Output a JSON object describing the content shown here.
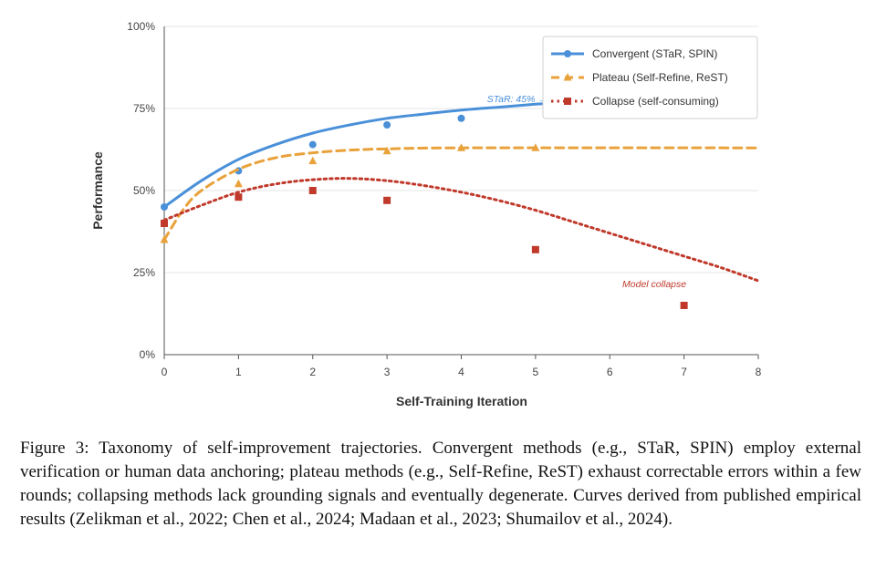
{
  "chart_data": {
    "type": "line",
    "xlabel": "Self-Training Iteration",
    "ylabel": "Performance",
    "xlim": [
      0,
      8
    ],
    "ylim": [
      0,
      100
    ],
    "x_ticks": [
      "0",
      "1",
      "2",
      "3",
      "4",
      "5",
      "6",
      "7",
      "8"
    ],
    "y_ticks": [
      "0%",
      "25%",
      "50%",
      "75%",
      "100%"
    ],
    "grid": "horizontal",
    "legend_position": "top-right",
    "series": [
      {
        "name": "Convergent (STaR, SPIN)",
        "color": "#4a90d9",
        "line_style": "solid",
        "marker": "circle",
        "points": [
          [
            0,
            45
          ],
          [
            1,
            56
          ],
          [
            2,
            64
          ],
          [
            3,
            70
          ],
          [
            4,
            72
          ]
        ],
        "curve": [
          [
            0,
            45
          ],
          [
            0.5,
            53
          ],
          [
            1,
            59.5
          ],
          [
            1.5,
            64
          ],
          [
            2,
            67.5
          ],
          [
            2.5,
            70
          ],
          [
            3,
            72
          ],
          [
            3.5,
            73.3
          ],
          [
            4,
            74.5
          ],
          [
            4.5,
            75.4
          ],
          [
            5,
            76.3
          ],
          [
            5.5,
            77
          ]
        ]
      },
      {
        "name": "Plateau (Self-Refine, ReST)",
        "color": "#e9a23b",
        "line_style": "dashed",
        "marker": "triangle",
        "points": [
          [
            0,
            35
          ],
          [
            1,
            52
          ],
          [
            2,
            59
          ],
          [
            3,
            62
          ],
          [
            4,
            63
          ],
          [
            5,
            63
          ]
        ],
        "curve": [
          [
            0,
            35
          ],
          [
            0.25,
            44
          ],
          [
            0.5,
            50
          ],
          [
            1,
            56.5
          ],
          [
            1.5,
            60
          ],
          [
            2,
            61.5
          ],
          [
            2.5,
            62.3
          ],
          [
            3,
            62.7
          ],
          [
            4,
            63
          ],
          [
            8,
            63
          ]
        ]
      },
      {
        "name": "Collapse (self-consuming)",
        "color": "#c0392b",
        "line_style": "dotted",
        "marker": "square",
        "points": [
          [
            0,
            40
          ],
          [
            1,
            48
          ],
          [
            2,
            50
          ],
          [
            3,
            47
          ],
          [
            5,
            32
          ],
          [
            7,
            15
          ]
        ],
        "curve": [
          [
            0,
            41
          ],
          [
            0.5,
            45.5
          ],
          [
            1,
            49.5
          ],
          [
            1.5,
            52
          ],
          [
            2,
            53.3
          ],
          [
            2.5,
            53.7
          ],
          [
            3,
            53
          ],
          [
            3.5,
            51.5
          ],
          [
            4,
            49.5
          ],
          [
            4.5,
            47
          ],
          [
            5,
            44
          ],
          [
            5.5,
            40.5
          ],
          [
            6,
            37
          ],
          [
            6.5,
            33.5
          ],
          [
            7,
            30
          ],
          [
            7.5,
            26.5
          ],
          [
            8,
            22.5
          ]
        ]
      }
    ],
    "annotations": [
      {
        "text": "STaR: 45% → 72%",
        "x": 4.9,
        "y": 77,
        "color": "#4a90d9"
      },
      {
        "text": "Model collapse",
        "x": 6.6,
        "y": 20.5,
        "color": "#c0392b"
      }
    ]
  },
  "caption": "Figure 3: Taxonomy of self-improvement trajectories. Convergent methods (e.g., STaR, SPIN) employ external verification or human data anchoring; plateau methods (e.g., Self-Refine, ReST) exhaust correctable errors within a few rounds; collapsing methods lack grounding signals and eventually degenerate. Curves derived from published empirical results (Zelikman et al., 2022; Chen et al., 2024; Madaan et al., 2023; Shumailov et al., 2024)."
}
